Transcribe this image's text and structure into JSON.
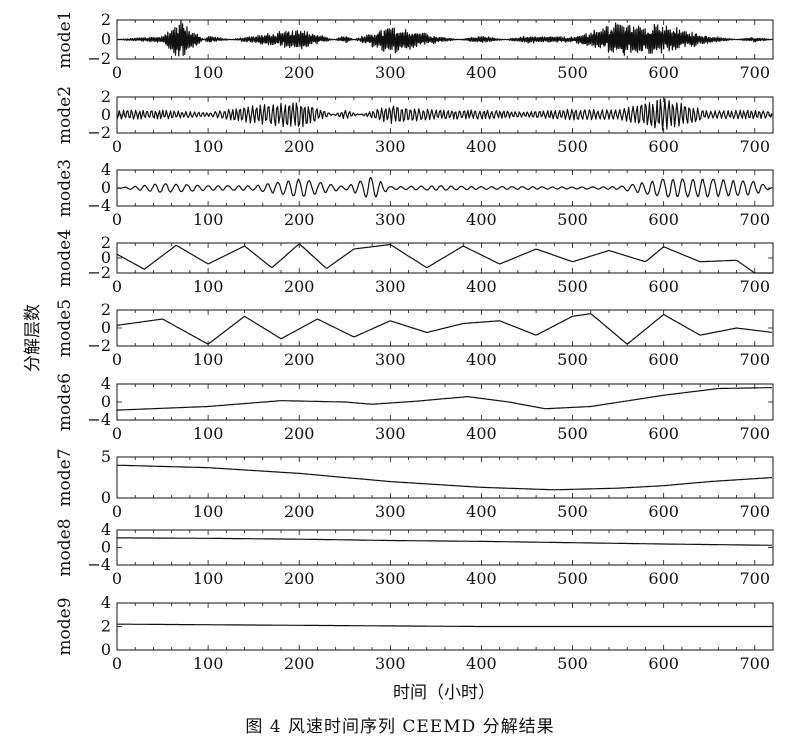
{
  "figure": {
    "caption": "图 4    风速时间序列 CEEMD 分解结果",
    "xlabel": "时间（小时）",
    "ylabel": "分解层数"
  },
  "chart_data": {
    "type": "line",
    "xlabel": "时间（小时）",
    "ylabel": "分解层数",
    "xlim": [
      0,
      720
    ],
    "xticks": [
      0,
      100,
      200,
      300,
      400,
      500,
      600,
      700
    ],
    "panels": [
      {
        "name": "mode1",
        "ylim": [
          -2,
          2
        ],
        "yticks": [
          -2,
          0,
          2
        ],
        "x": [
          0,
          50,
          70,
          100,
          150,
          200,
          250,
          300,
          350,
          400,
          450,
          500,
          550,
          600,
          650,
          700,
          720
        ],
        "y": [
          0,
          0.3,
          1.8,
          -0.3,
          0.3,
          0.9,
          -0.3,
          1.2,
          0.3,
          -0.3,
          0.3,
          0.2,
          1.5,
          1.2,
          0.3,
          -0.2,
          0
        ]
      },
      {
        "name": "mode2",
        "ylim": [
          -2,
          2
        ],
        "yticks": [
          -2,
          0,
          2
        ],
        "x": [
          0,
          50,
          100,
          150,
          200,
          250,
          300,
          350,
          400,
          450,
          500,
          550,
          600,
          650,
          700,
          720
        ],
        "y": [
          0.5,
          0.5,
          0.2,
          1.0,
          1.5,
          -0.5,
          1.0,
          0.5,
          0.5,
          0.3,
          0.6,
          0.5,
          1.8,
          0.4,
          0.5,
          0.3
        ]
      },
      {
        "name": "mode3",
        "ylim": [
          -4,
          4
        ],
        "yticks": [
          -4,
          0,
          4
        ],
        "x": [
          0,
          50,
          100,
          150,
          200,
          250,
          280,
          300,
          350,
          400,
          450,
          500,
          550,
          600,
          650,
          700,
          720
        ],
        "y": [
          0,
          1,
          0.5,
          0.5,
          2,
          0.3,
          2.5,
          0.3,
          0.5,
          0.3,
          0.3,
          0.2,
          0.3,
          2,
          2,
          1.5,
          0
        ]
      },
      {
        "name": "mode4",
        "ylim": [
          -2,
          2
        ],
        "yticks": [
          -2,
          0,
          2
        ],
        "x": [
          0,
          30,
          65,
          100,
          140,
          170,
          200,
          230,
          260,
          300,
          340,
          380,
          420,
          460,
          500,
          540,
          580,
          600,
          640,
          680,
          700
        ],
        "y": [
          0.5,
          -1.5,
          1.7,
          -0.8,
          1.6,
          -1.3,
          1.9,
          -1.4,
          1.2,
          1.8,
          -1.3,
          1.6,
          -0.8,
          1.2,
          -0.5,
          1.0,
          -0.5,
          1.5,
          -0.5,
          -0.3,
          -2
        ]
      },
      {
        "name": "mode5",
        "ylim": [
          -2,
          2
        ],
        "yticks": [
          -2,
          0,
          2
        ],
        "x": [
          0,
          50,
          100,
          140,
          180,
          220,
          260,
          300,
          340,
          380,
          420,
          460,
          500,
          520,
          560,
          600,
          640,
          680,
          720
        ],
        "y": [
          0.3,
          1.0,
          -1.8,
          1.3,
          -1.2,
          1.0,
          -1.0,
          0.8,
          -0.5,
          0.5,
          0.8,
          -0.8,
          1.3,
          1.6,
          -1.8,
          1.5,
          -0.8,
          0.0,
          -0.5
        ]
      },
      {
        "name": "mode6",
        "ylim": [
          -4,
          4
        ],
        "yticks": [
          -4,
          0,
          4
        ],
        "x": [
          0,
          100,
          180,
          250,
          280,
          330,
          385,
          430,
          470,
          520,
          600,
          660,
          720
        ],
        "y": [
          -1.8,
          -1.0,
          0.3,
          0.0,
          -0.5,
          0.2,
          1.2,
          0.0,
          -1.5,
          -1.0,
          1.5,
          3.0,
          3.2
        ]
      },
      {
        "name": "mode7",
        "ylim": [
          0,
          5
        ],
        "yticks": [
          0,
          5
        ],
        "x": [
          0,
          100,
          200,
          300,
          400,
          480,
          550,
          600,
          650,
          720
        ],
        "y": [
          4.0,
          3.7,
          3.0,
          2.0,
          1.3,
          1.0,
          1.2,
          1.5,
          2.0,
          2.5
        ]
      },
      {
        "name": "mode8",
        "ylim": [
          -4,
          4
        ],
        "yticks": [
          -4,
          0,
          4
        ],
        "x": [
          0,
          100,
          200,
          300,
          400,
          500,
          600,
          720
        ],
        "y": [
          2.2,
          2.1,
          1.9,
          1.6,
          1.4,
          1.1,
          0.8,
          0.5
        ]
      },
      {
        "name": "mode9",
        "ylim": [
          0,
          4
        ],
        "yticks": [
          0,
          2,
          4
        ],
        "x": [
          0,
          100,
          200,
          300,
          400,
          500,
          600,
          720
        ],
        "y": [
          2.2,
          2.15,
          2.1,
          2.05,
          2.0,
          2.0,
          2.0,
          2.0
        ]
      }
    ]
  }
}
